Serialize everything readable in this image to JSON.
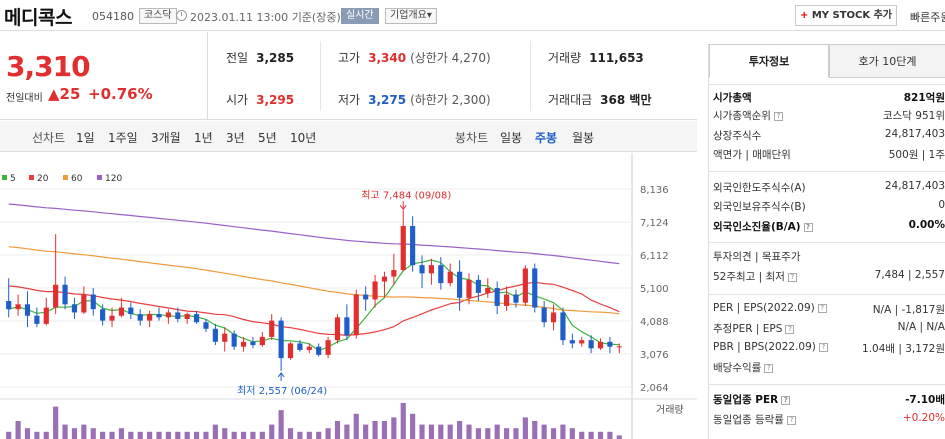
{
  "header": {
    "company_name": "메디콕스",
    "code": "054180",
    "market": "코스닥",
    "datetime": "2023.01.11 13:00",
    "status": "기준(장중)",
    "realtime_label": "실시간",
    "overview_label": "기업개요",
    "overview_chevron": "▾",
    "mystock_plus": "+",
    "mystock_label": "MY STOCK 추가",
    "quick_link": "빠른주원"
  },
  "price": {
    "current": "3,310",
    "change_label": "전일대비",
    "change_arrow": "▲",
    "change_value": "25",
    "change_pct": "+0.76%"
  },
  "quote": {
    "prev_close_label": "전일",
    "prev_close": "3,285",
    "high_label": "고가",
    "high": "3,340",
    "upper_limit": "(상한가 4,270)",
    "volume_label": "거래량",
    "volume": "111,653",
    "open_label": "시가",
    "open": "3,295",
    "low_label": "저가",
    "low": "3,275",
    "lower_limit": "(하한가 2,300)",
    "amount_label": "거래대금",
    "amount": "368 백만"
  },
  "period_bar": {
    "line_label": "선차트",
    "line_periods": [
      "1일",
      "1주일",
      "3개월",
      "1년",
      "3년",
      "5년",
      "10년"
    ],
    "candle_label": "봉차트",
    "candle_periods": [
      "일봉",
      "주봉",
      "월봉"
    ],
    "active_candle": "주봉"
  },
  "colors": {
    "up": "#e12e2e",
    "down": "#1f5ec9",
    "ma5": "#3cb43c",
    "ma20": "#e84040",
    "ma60": "#f09a3c",
    "ma120": "#9a60c8",
    "volume": "#9b6fb4"
  },
  "chart_data": {
    "type": "candlestick",
    "legend": [
      {
        "name": "5",
        "color": "#3cb43c"
      },
      {
        "name": "20",
        "color": "#e84040"
      },
      {
        "name": "60",
        "color": "#f09a3c"
      },
      {
        "name": "120",
        "color": "#9a60c8"
      }
    ],
    "yticks": [
      "8,136",
      "7,124",
      "6,112",
      "5,100",
      "4,088",
      "3,076",
      "2,064"
    ],
    "ylim": [
      2064,
      8136
    ],
    "high_annotation": "최고 7,484 (09/08)",
    "low_annotation": "최저 2,557 (06/24)",
    "volume_label": "거래량",
    "candles": [
      [
        4700,
        5400,
        4200,
        4450
      ],
      [
        4450,
        4900,
        4250,
        4600
      ],
      [
        4600,
        5000,
        3900,
        4250
      ],
      [
        4250,
        4500,
        3900,
        4000
      ],
      [
        4000,
        4800,
        3950,
        4500
      ],
      [
        4500,
        6750,
        4300,
        5200
      ],
      [
        5200,
        5450,
        4450,
        4600
      ],
      [
        4600,
        4800,
        4150,
        4350
      ],
      [
        4350,
        5150,
        4300,
        4900
      ],
      [
        4900,
        5100,
        4250,
        4450
      ],
      [
        4450,
        4600,
        3950,
        4100
      ],
      [
        4100,
        4500,
        3900,
        4250
      ],
      [
        4250,
        4800,
        4200,
        4500
      ],
      [
        4500,
        4650,
        4150,
        4300
      ],
      [
        4300,
        4450,
        3950,
        4100
      ],
      [
        4100,
        4400,
        3900,
        4300
      ],
      [
        4300,
        4500,
        4100,
        4200
      ],
      [
        4200,
        4450,
        4000,
        4350
      ],
      [
        4350,
        4500,
        4050,
        4150
      ],
      [
        4150,
        4350,
        4000,
        4300
      ],
      [
        4300,
        4400,
        4000,
        4050
      ],
      [
        4050,
        4150,
        3750,
        3850
      ],
      [
        3850,
        4000,
        3350,
        3450
      ],
      [
        3450,
        3900,
        3150,
        3700
      ],
      [
        3700,
        3800,
        3200,
        3300
      ],
      [
        3300,
        3600,
        3150,
        3450
      ],
      [
        3450,
        3600,
        3250,
        3350
      ],
      [
        3350,
        3750,
        3300,
        3600
      ],
      [
        3600,
        4300,
        3500,
        4100
      ],
      [
        4100,
        4200,
        2557,
        2950
      ],
      [
        2950,
        3450,
        2900,
        3400
      ],
      [
        3400,
        3500,
        3150,
        3200
      ],
      [
        3200,
        3400,
        3100,
        3300
      ],
      [
        3300,
        3400,
        3000,
        3050
      ],
      [
        3050,
        3600,
        2950,
        3500
      ],
      [
        3500,
        4300,
        3400,
        4200
      ],
      [
        4200,
        4600,
        3500,
        3650
      ],
      [
        3650,
        5050,
        3550,
        4900
      ],
      [
        4900,
        5150,
        4400,
        4750
      ],
      [
        4750,
        5500,
        4500,
        5300
      ],
      [
        5300,
        5600,
        4800,
        5450
      ],
      [
        5450,
        6150,
        5200,
        5650
      ],
      [
        5650,
        7484,
        5600,
        7000
      ],
      [
        7000,
        7300,
        5600,
        5800
      ],
      [
        5800,
        6100,
        5100,
        5550
      ],
      [
        5550,
        6000,
        5200,
        5800
      ],
      [
        5800,
        6050,
        5050,
        5250
      ],
      [
        5250,
        5850,
        5150,
        5600
      ],
      [
        5600,
        5950,
        4400,
        4800
      ],
      [
        4800,
        5550,
        4600,
        5350
      ],
      [
        5350,
        5500,
        4700,
        4950
      ],
      [
        4950,
        5400,
        4800,
        5100
      ],
      [
        5100,
        5300,
        4300,
        4550
      ],
      [
        4550,
        5150,
        4400,
        4900
      ],
      [
        4900,
        5050,
        4500,
        4650
      ],
      [
        4650,
        5800,
        4550,
        5700
      ],
      [
        5700,
        5850,
        4350,
        4500
      ],
      [
        4500,
        4700,
        3900,
        4050
      ],
      [
        4050,
        4600,
        3800,
        4350
      ],
      [
        4350,
        4500,
        3350,
        3500
      ],
      [
        3500,
        3700,
        3250,
        3400
      ],
      [
        3400,
        3600,
        3300,
        3500
      ],
      [
        3500,
        3650,
        3100,
        3250
      ],
      [
        3250,
        3550,
        3200,
        3450
      ],
      [
        3450,
        3600,
        3100,
        3300
      ],
      [
        3300,
        3400,
        3100,
        3310
      ]
    ],
    "volumes": [
      2,
      5,
      3,
      2,
      2,
      9,
      4,
      3,
      4,
      3,
      2,
      2,
      3,
      2,
      2,
      2,
      2,
      2,
      2,
      2,
      2,
      2,
      4,
      3,
      2,
      2,
      2,
      2,
      4,
      8,
      3,
      2,
      2,
      2,
      3,
      5,
      4,
      7,
      4,
      5,
      5,
      6,
      10,
      7,
      4,
      4,
      4,
      4,
      5,
      4,
      3,
      3,
      4,
      3,
      3,
      6,
      5,
      4,
      3,
      4,
      3,
      2,
      2,
      2,
      2,
      1
    ]
  },
  "right_panel": {
    "tabs": [
      "투자정보",
      "호가 10단계"
    ],
    "rows": [
      {
        "k": "시가총액",
        "v": "821억원",
        "bold": true
      },
      {
        "k": "시가총액순위",
        "v": "코스닥 951위",
        "q": true
      },
      {
        "k": "상장주식수",
        "v": "24,817,403"
      },
      {
        "k": "액면가 | 매매단위",
        "v": "500원 | 1주"
      },
      {
        "k": "외국인한도주식수(A)",
        "v": "24,817,403"
      },
      {
        "k": "외국인보유주식수(B)",
        "v": "0"
      },
      {
        "k": "외국인소진율(B/A)",
        "v": "0.00%",
        "bold": true,
        "q": true
      },
      {
        "k": "투자의견 | 목표주가",
        "v": ""
      },
      {
        "k": "52주최고 | 최저",
        "v": "7,484 | 2,557",
        "q": true
      },
      {
        "k": "PER | EPS(2022.09)",
        "v": "N/A | -1,817원",
        "q": true
      },
      {
        "k": "추정PER | EPS",
        "v": "N/A | N/A",
        "q": true
      },
      {
        "k": "PBR | BPS(2022.09)",
        "v": "1.04배 | 3,172원",
        "q": true
      },
      {
        "k": "배당수익률",
        "v": "",
        "q": true
      },
      {
        "k": "동일업종 PER",
        "v": "-7.10배",
        "bold": true,
        "q": true
      },
      {
        "k": "동일업종 등락률",
        "v": "+0.20%",
        "red": true,
        "q": true
      }
    ]
  }
}
